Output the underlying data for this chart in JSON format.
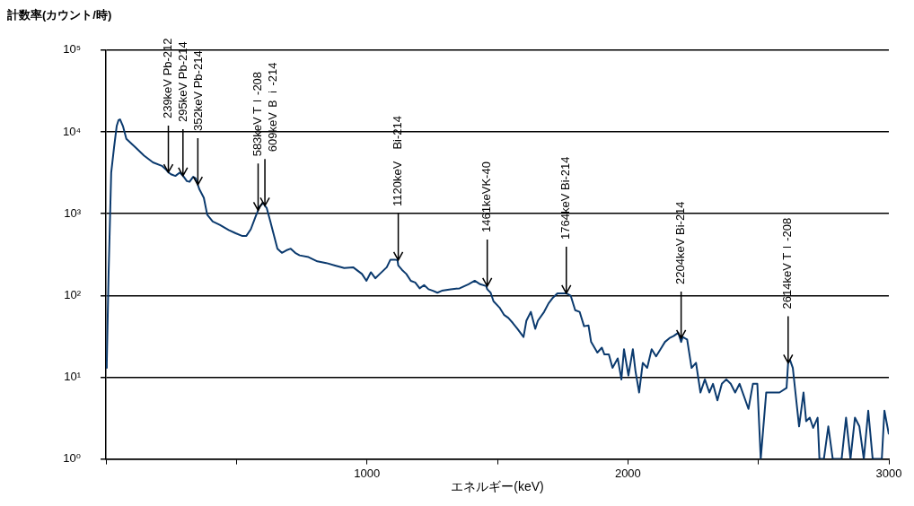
{
  "chart_data": {
    "type": "line",
    "xlabel": "エネルギー(keV)",
    "ylabel": "計数率(カウント/時)",
    "x": [
      0,
      3,
      10,
      20,
      31,
      41,
      48,
      54,
      65,
      78,
      112,
      146,
      180,
      214,
      232,
      239,
      249,
      266,
      283,
      295,
      300,
      310,
      320,
      334,
      344,
      352,
      358,
      375,
      388,
      409,
      436,
      470,
      497,
      521,
      538,
      555,
      572,
      583,
      589,
      603,
      609,
      616,
      630,
      640,
      657,
      674,
      691,
      708,
      725,
      742,
      776,
      810,
      844,
      878,
      913,
      947,
      981,
      998,
      1015,
      1032,
      1049,
      1076,
      1090,
      1107,
      1117,
      1120,
      1134,
      1151,
      1168,
      1185,
      1202,
      1219,
      1236,
      1253,
      1270,
      1287,
      1321,
      1355,
      1389,
      1413,
      1434,
      1457,
      1461,
      1474,
      1485,
      1508,
      1525,
      1542,
      1559,
      1577,
      1600,
      1611,
      1628,
      1645,
      1655,
      1679,
      1696,
      1713,
      1730,
      1764,
      1781,
      1798,
      1815,
      1832,
      1849,
      1859,
      1883,
      1900,
      1910,
      1927,
      1941,
      1961,
      1975,
      1985,
      2002,
      2019,
      2029,
      2043,
      2057,
      2074,
      2091,
      2108,
      2125,
      2142,
      2159,
      2176,
      2193,
      2204,
      2210,
      2227,
      2244,
      2261,
      2278,
      2295,
      2312,
      2326,
      2343,
      2360,
      2377,
      2394,
      2411,
      2428,
      2462,
      2479,
      2496,
      2509,
      2530,
      2547,
      2581,
      2608,
      2614,
      2622,
      2632,
      2642,
      2656,
      2673,
      2683,
      2697,
      2710,
      2727,
      2734,
      2751,
      2768,
      2785,
      2819,
      2836,
      2853,
      2870,
      2887,
      2904,
      2921,
      2938,
      2973,
      2983,
      3000
    ],
    "values": [
      13,
      15,
      183,
      3180,
      6490,
      11750,
      13900,
      14200,
      11750,
      8230,
      6490,
      5110,
      4230,
      3840,
      3410,
      3200,
      3030,
      2890,
      3180,
      2900,
      2760,
      2500,
      2450,
      2820,
      2690,
      2250,
      1980,
      1560,
      970,
      800,
      730,
      630,
      575,
      535,
      535,
      645,
      900,
      1100,
      1230,
      1350,
      1250,
      1170,
      800,
      600,
      373,
      332,
      356,
      373,
      332,
      309,
      294,
      261,
      249,
      232,
      216,
      221,
      183,
      151,
      192,
      162,
      183,
      221,
      274,
      274,
      270,
      232,
      206,
      183,
      151,
      144,
      122,
      134,
      119,
      114,
      108,
      114,
      119,
      122,
      137,
      151,
      137,
      130,
      119,
      108,
      85,
      71,
      58,
      53,
      46,
      39,
      31,
      49,
      63,
      39,
      49,
      63,
      80,
      94,
      106,
      106,
      99,
      66,
      63,
      42,
      43,
      27,
      20,
      23,
      19,
      19,
      13,
      17,
      9.4,
      22,
      10.5,
      22,
      11.9,
      6.5,
      15,
      13,
      22,
      18,
      22,
      27,
      30,
      32,
      35,
      27,
      31,
      29,
      13,
      15,
      6.5,
      9.4,
      6.5,
      8.3,
      5.2,
      8.3,
      9.4,
      8.3,
      6.5,
      8.3,
      4.1,
      8.3,
      8.3,
      1,
      6.5,
      6.5,
      6.5,
      7.4,
      15,
      16,
      13,
      6.5,
      2.5,
      6.5,
      2.9,
      3.2,
      2.4,
      3.2,
      1,
      1,
      2.5,
      1,
      1,
      3.2,
      1,
      3.2,
      2.5,
      1,
      3.9,
      1,
      1,
      3.9,
      2.0
    ],
    "color": "#0b3a6e",
    "marker": "none",
    "log": "y",
    "xlim": [
      0,
      3000
    ],
    "ylim": [
      1,
      100000
    ],
    "xticks": [
      {
        "value": 0,
        "label": null
      },
      {
        "value": 500,
        "label": null
      },
      1000,
      {
        "value": 1500,
        "label": null
      },
      2000,
      {
        "value": 2500,
        "label": null
      },
      3000
    ],
    "yticks": [
      {
        "value": 1,
        "label": "10⁰"
      },
      {
        "value": 10,
        "label": "10¹"
      },
      {
        "value": 100,
        "label": "10²"
      },
      {
        "value": 1000,
        "label": "10³"
      },
      {
        "value": 10000,
        "label": "10⁴"
      },
      {
        "value": 100000,
        "label": "10⁵"
      }
    ],
    "grid": "y",
    "annotations": [
      {
        "text": "239keV Pb-212",
        "x": 239,
        "y": 3200
      },
      {
        "text": "295keV Pb-214",
        "x": 295,
        "y": 2900
      },
      {
        "text": "352keV Pb-214",
        "x": 352,
        "y": 2250
      },
      {
        "text": "583keV Tｌ-208",
        "x": 583,
        "y": 1100
      },
      {
        "text": "609keV Ｂｉ-214",
        "x": 609,
        "y": 1250
      },
      {
        "text": "1120keV　Bi-214",
        "x": 1120,
        "y": 270
      },
      {
        "text": "1461keVK-40",
        "x": 1461,
        "y": 130
      },
      {
        "text": "1764keV Bi-214",
        "x": 1764,
        "y": 106
      },
      {
        "text": "2204keV Bi-214",
        "x": 2204,
        "y": 30
      },
      {
        "text": "2614keV Tｌ-208",
        "x": 2614,
        "y": 15
      }
    ]
  }
}
